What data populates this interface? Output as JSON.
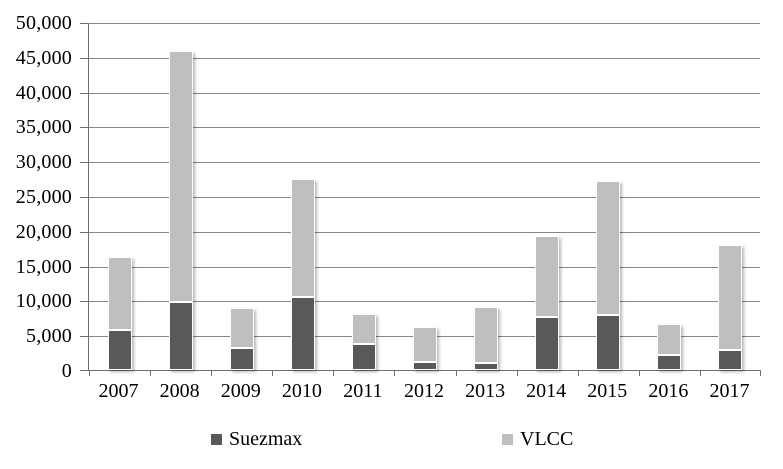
{
  "chart_data": {
    "type": "bar",
    "stacked": true,
    "title": "",
    "xlabel": "",
    "ylabel": "",
    "categories": [
      "2007",
      "2008",
      "2009",
      "2010",
      "2011",
      "2012",
      "2013",
      "2014",
      "2015",
      "2016",
      "2017"
    ],
    "series": [
      {
        "name": "Suezmax",
        "color": "#595959",
        "values": [
          5800,
          9800,
          3200,
          10500,
          3700,
          1100,
          1000,
          7600,
          7900,
          2200,
          2900
        ]
      },
      {
        "name": "VLCC",
        "color": "#bfbfbf",
        "values": [
          10400,
          36000,
          5700,
          16900,
          4400,
          5100,
          8100,
          11700,
          19300,
          4400,
          15000
        ]
      }
    ],
    "stack_totals": [
      16200,
      45800,
      8900,
      27400,
      8100,
      6200,
      9100,
      19300,
      27200,
      6600,
      17900
    ],
    "ylim": [
      0,
      50000
    ],
    "ytick_step": 5000,
    "ytick_labels": [
      "0",
      "5,000",
      "10,000",
      "15,000",
      "20,000",
      "25,000",
      "30,000",
      "35,000",
      "40,000",
      "45,000",
      "50,000"
    ],
    "grid": true,
    "legend_position": "bottom",
    "colors": {
      "gridline": "#878787",
      "axis": "#6f6f6f",
      "text": "#000000",
      "background": "#ffffff"
    }
  }
}
